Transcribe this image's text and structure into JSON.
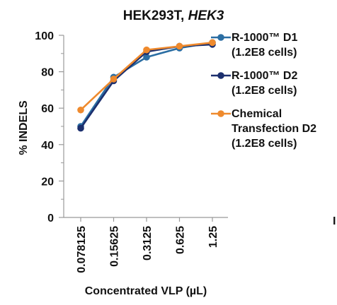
{
  "chart_data": {
    "type": "line",
    "title": "HEK293T, ",
    "title_italic": "HEK3",
    "xlabel": "Concentrated VLP (µL)",
    "ylabel": "% INDELS",
    "categories": [
      "0.078125",
      "0.15625",
      "0.3125",
      "0.625",
      "1.25"
    ],
    "ylim": [
      0,
      100
    ],
    "yticks": [
      "0",
      "20",
      "40",
      "60",
      "80",
      "100"
    ],
    "grid": false,
    "legend_position": "right",
    "series": [
      {
        "name": "R-1000™ D1",
        "name_line2": "(1.2E8 cells)",
        "color": "#2b6ea3",
        "values": [
          50,
          77,
          88,
          93,
          96
        ]
      },
      {
        "name": "R-1000™ D2",
        "name_line2": "(1.2E8 cells)",
        "color": "#1c2f6e",
        "values": [
          49,
          75,
          91,
          94,
          95
        ]
      },
      {
        "name": "Chemical",
        "name_line2": "Transfection D2",
        "name_line3": "(1.2E8 cells)",
        "color": "#ef8a2d",
        "values": [
          59,
          76,
          92,
          94,
          96
        ]
      }
    ],
    "edge_glyph": "I"
  }
}
